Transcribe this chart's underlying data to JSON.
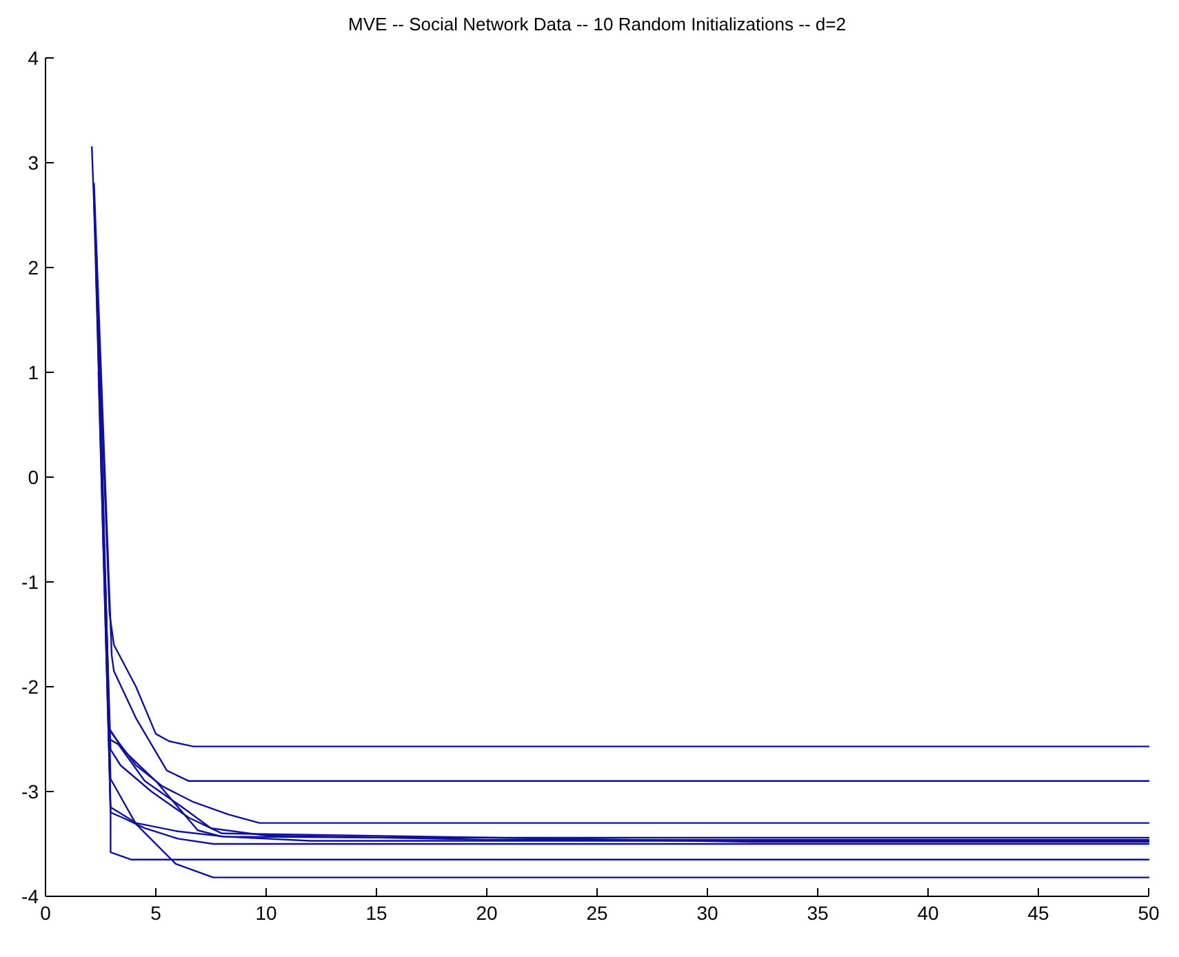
{
  "chart_data": {
    "type": "line",
    "title": "MVE -- Social Network Data -- 10 Random Initializations -- d=2",
    "xlim": [
      0,
      50
    ],
    "xticks": [
      0,
      5,
      10,
      15,
      20,
      25,
      30,
      35,
      40,
      45,
      50
    ],
    "ylim": [
      -4,
      4
    ],
    "yticks": [
      -4,
      -3,
      -2,
      -1,
      0,
      1,
      2,
      3,
      4
    ],
    "grid": false,
    "marker": "none",
    "line_style": "solid",
    "series": [
      {
        "color": "#1010a0",
        "x": [
          2.1,
          2.9,
          3.1,
          4.1,
          5,
          5.6,
          6.7,
          50
        ],
        "values": [
          3.15,
          -1.3,
          -1.6,
          -2.0,
          -2.45,
          -2.52,
          -2.57,
          -2.57
        ]
      },
      {
        "color": "#1010a0",
        "x": [
          2.2,
          3,
          3.1,
          4.1,
          5.5,
          6.5,
          50
        ],
        "values": [
          2.8,
          -1.7,
          -1.85,
          -2.3,
          -2.8,
          -2.9,
          -2.9
        ]
      },
      {
        "color": "#1010a0",
        "x": [
          2.2,
          2.85,
          3.2,
          4.1,
          5.3,
          6.7,
          8.3,
          9.7,
          50
        ],
        "values": [
          2.6,
          -2.4,
          -2.5,
          -2.75,
          -2.95,
          -3.1,
          -3.22,
          -3.3,
          -3.3
        ]
      },
      {
        "color": "#1010a0",
        "x": [
          2.3,
          2.9,
          3.5,
          5,
          6.9,
          8,
          15,
          50
        ],
        "values": [
          2.2,
          -2.4,
          -2.6,
          -2.9,
          -3.37,
          -3.43,
          -3.44,
          -3.44
        ]
      },
      {
        "color": "#1010a0",
        "x": [
          2.3,
          2.9,
          3.3,
          4.5,
          6.2,
          7.5,
          10,
          20,
          50
        ],
        "values": [
          1.9,
          -2.5,
          -2.55,
          -2.9,
          -3.15,
          -3.35,
          -3.42,
          -3.46,
          -3.46
        ]
      },
      {
        "color": "#1010a0",
        "x": [
          2.4,
          2.95,
          4.1,
          6,
          8.1,
          12,
          50
        ],
        "values": [
          1.5,
          -3.15,
          -3.3,
          -3.38,
          -3.43,
          -3.47,
          -3.47
        ]
      },
      {
        "color": "#1010a0",
        "x": [
          2.4,
          2.95,
          3.5,
          4.5,
          6,
          7.6,
          50
        ],
        "values": [
          1.0,
          -3.2,
          -3.25,
          -3.35,
          -3.45,
          -3.5,
          -3.5
        ]
      },
      {
        "color": "#1010a0",
        "x": [
          2.5,
          2.95,
          3.4,
          4.8,
          6.5,
          8,
          32,
          50
        ],
        "values": [
          0.4,
          -2.6,
          -2.75,
          -3.0,
          -3.25,
          -3.4,
          -3.48,
          -3.48
        ]
      },
      {
        "color": "#1010a0",
        "x": [
          2.6,
          2.95,
          2.95,
          3.9,
          50
        ],
        "values": [
          -0.2,
          -3.22,
          -3.58,
          -3.65,
          -3.65
        ]
      },
      {
        "color": "#1010a0",
        "x": [
          2.7,
          2.95,
          4.1,
          5.9,
          7.6,
          50
        ],
        "values": [
          -0.9,
          -2.88,
          -3.31,
          -3.69,
          -3.82,
          -3.82
        ]
      }
    ]
  }
}
